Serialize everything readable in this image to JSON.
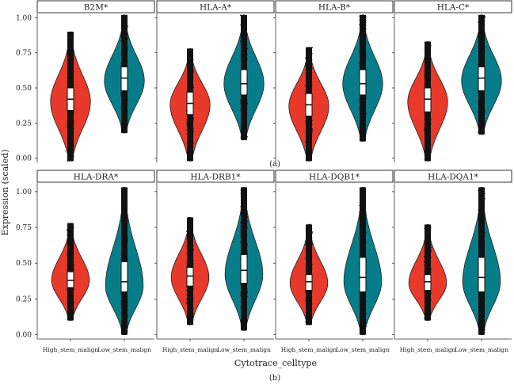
{
  "figure": {
    "ylabel": "Expression (scaled)",
    "xlabel": "Cytotrace_celltype",
    "colors": {
      "High_stem_malign": "#e8392a",
      "Low_stem_malign": "#087d8a"
    }
  },
  "chart_data": [
    {
      "type": "violin",
      "panel_label": "(a)",
      "categories": [
        "High_stem_malign",
        "Low_stem_malign"
      ],
      "ylim": [
        -0.03,
        1.03
      ],
      "yticks": [
        "0.00",
        "0.25",
        "0.50",
        "0.75",
        "1.00"
      ],
      "facets": [
        {
          "title": "B2M*",
          "groups": [
            {
              "category": "High_stem_malign",
              "min": -0.02,
              "max": 0.9,
              "q1": 0.34,
              "median": 0.42,
              "q3": 0.5,
              "mode": 0.4,
              "halfwidth": 0.9
            },
            {
              "category": "Low_stem_malign",
              "min": 0.18,
              "max": 1.02,
              "q1": 0.48,
              "median": 0.57,
              "q3": 0.65,
              "mode": 0.55,
              "halfwidth": 0.9
            }
          ]
        },
        {
          "title": "HLA-A*",
          "groups": [
            {
              "category": "High_stem_malign",
              "min": -0.02,
              "max": 0.78,
              "q1": 0.31,
              "median": 0.39,
              "q3": 0.47,
              "mode": 0.38,
              "halfwidth": 0.9
            },
            {
              "category": "Low_stem_malign",
              "min": 0.13,
              "max": 1.02,
              "q1": 0.45,
              "median": 0.53,
              "q3": 0.63,
              "mode": 0.53,
              "halfwidth": 0.9
            }
          ]
        },
        {
          "title": "HLA-B*",
          "groups": [
            {
              "category": "High_stem_malign",
              "min": -0.02,
              "max": 0.79,
              "q1": 0.3,
              "median": 0.38,
              "q3": 0.46,
              "mode": 0.37,
              "halfwidth": 0.9
            },
            {
              "category": "Low_stem_malign",
              "min": 0.12,
              "max": 1.02,
              "q1": 0.45,
              "median": 0.53,
              "q3": 0.63,
              "mode": 0.53,
              "halfwidth": 0.9
            }
          ]
        },
        {
          "title": "HLA-C*",
          "groups": [
            {
              "category": "High_stem_malign",
              "min": -0.02,
              "max": 0.83,
              "q1": 0.33,
              "median": 0.42,
              "q3": 0.5,
              "mode": 0.4,
              "halfwidth": 0.9
            },
            {
              "category": "Low_stem_malign",
              "min": 0.17,
              "max": 1.02,
              "q1": 0.48,
              "median": 0.57,
              "q3": 0.65,
              "mode": 0.55,
              "halfwidth": 0.9
            }
          ]
        }
      ]
    },
    {
      "type": "violin",
      "panel_label": "(b)",
      "categories": [
        "High_stem_malign",
        "Low_stem_malign"
      ],
      "xticks": [
        "High_stem_malign",
        "Low_stem_malign"
      ],
      "ylim": [
        -0.03,
        1.06
      ],
      "yticks": [
        "0.00",
        "0.25",
        "0.50",
        "0.75",
        "1.00"
      ],
      "facets": [
        {
          "title": "HLA-DRA*",
          "groups": [
            {
              "category": "High_stem_malign",
              "min": 0.1,
              "max": 0.78,
              "q1": 0.33,
              "median": 0.38,
              "q3": 0.44,
              "mode": 0.38,
              "halfwidth": 0.85
            },
            {
              "category": "Low_stem_malign",
              "min": 0.0,
              "max": 1.03,
              "q1": 0.3,
              "median": 0.37,
              "q3": 0.51,
              "mode": 0.34,
              "halfwidth": 0.85
            }
          ]
        },
        {
          "title": "HLA-DRB1*",
          "groups": [
            {
              "category": "High_stem_malign",
              "min": 0.07,
              "max": 0.82,
              "q1": 0.34,
              "median": 0.41,
              "q3": 0.47,
              "mode": 0.4,
              "halfwidth": 0.85
            },
            {
              "category": "Low_stem_malign",
              "min": 0.03,
              "max": 1.03,
              "q1": 0.36,
              "median": 0.45,
              "q3": 0.56,
              "mode": 0.42,
              "halfwidth": 0.85
            }
          ]
        },
        {
          "title": "HLA-DQB1*",
          "groups": [
            {
              "category": "High_stem_malign",
              "min": 0.07,
              "max": 0.77,
              "q1": 0.31,
              "median": 0.37,
              "q3": 0.42,
              "mode": 0.36,
              "halfwidth": 0.85
            },
            {
              "category": "Low_stem_malign",
              "min": 0.0,
              "max": 1.03,
              "q1": 0.3,
              "median": 0.4,
              "q3": 0.54,
              "mode": 0.37,
              "halfwidth": 0.85
            }
          ]
        },
        {
          "title": "HLA-DQA1*",
          "groups": [
            {
              "category": "High_stem_malign",
              "min": 0.1,
              "max": 0.77,
              "q1": 0.31,
              "median": 0.37,
              "q3": 0.42,
              "mode": 0.36,
              "halfwidth": 0.85
            },
            {
              "category": "Low_stem_malign",
              "min": 0.0,
              "max": 1.03,
              "q1": 0.3,
              "median": 0.4,
              "q3": 0.54,
              "mode": 0.37,
              "halfwidth": 0.85
            }
          ]
        }
      ]
    }
  ]
}
